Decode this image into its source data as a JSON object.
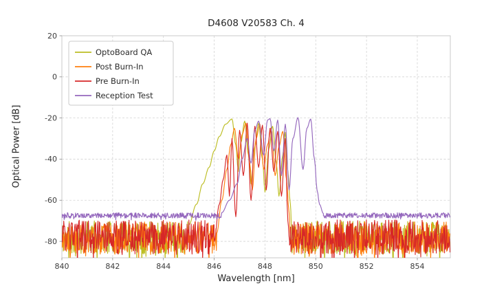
{
  "chart_data": {
    "type": "line",
    "title": "D4608 V20583 Ch. 4",
    "xlabel": "Wavelength [nm]",
    "ylabel": "Optical Power [dB]",
    "xlim": [
      840,
      855.3
    ],
    "ylim": [
      -88,
      20
    ],
    "xticks": [
      840,
      842,
      844,
      846,
      848,
      850,
      852,
      854
    ],
    "yticks": [
      20,
      0,
      -20,
      -40,
      -60,
      -80
    ],
    "grid": true,
    "legend_position": "upper left",
    "series": [
      {
        "name": "OptoBoard QA",
        "color": "#bcbd22",
        "noise": {
          "mean": -78,
          "amp": 8,
          "seed": 11
        },
        "noise_ranges": [
          [
            840,
            845.0
          ],
          [
            849.05,
            855.3
          ]
        ],
        "feature": [
          [
            845.0,
            -72
          ],
          [
            845.3,
            -62
          ],
          [
            845.55,
            -52
          ],
          [
            845.8,
            -44
          ],
          [
            846.0,
            -36
          ],
          [
            846.2,
            -29
          ],
          [
            846.45,
            -23
          ],
          [
            846.7,
            -20.5
          ],
          [
            846.85,
            -33
          ],
          [
            846.95,
            -46
          ],
          [
            847.05,
            -32
          ],
          [
            847.2,
            -21.5
          ],
          [
            847.35,
            -38
          ],
          [
            847.45,
            -52
          ],
          [
            847.6,
            -34
          ],
          [
            847.75,
            -22.5
          ],
          [
            847.9,
            -40
          ],
          [
            848.0,
            -56
          ],
          [
            848.15,
            -35
          ],
          [
            848.3,
            -24
          ],
          [
            848.45,
            -42
          ],
          [
            848.55,
            -58
          ],
          [
            848.7,
            -38
          ],
          [
            848.8,
            -27
          ],
          [
            848.9,
            -46
          ],
          [
            849.0,
            -62
          ],
          [
            849.05,
            -74
          ]
        ]
      },
      {
        "name": "Post Burn-In",
        "color": "#ff7f0e",
        "noise": {
          "mean": -78.5,
          "amp": 8,
          "seed": 22
        },
        "noise_ranges": [
          [
            840,
            846.1
          ],
          [
            849.0,
            855.3
          ]
        ],
        "feature": [
          [
            846.1,
            -76
          ],
          [
            846.3,
            -60
          ],
          [
            846.5,
            -45
          ],
          [
            846.65,
            -33
          ],
          [
            846.8,
            -25
          ],
          [
            846.95,
            -40
          ],
          [
            847.1,
            -28
          ],
          [
            847.25,
            -22.5
          ],
          [
            847.4,
            -42
          ],
          [
            847.5,
            -55
          ],
          [
            847.65,
            -30
          ],
          [
            847.8,
            -23
          ],
          [
            847.95,
            -45
          ],
          [
            848.1,
            -33
          ],
          [
            848.25,
            -24.5
          ],
          [
            848.4,
            -48
          ],
          [
            848.55,
            -34
          ],
          [
            848.7,
            -26.5
          ],
          [
            848.85,
            -50
          ],
          [
            848.95,
            -66
          ],
          [
            849.0,
            -78
          ]
        ]
      },
      {
        "name": "Pre Burn-In",
        "color": "#d62728",
        "noise": {
          "mean": -78,
          "amp": 8.5,
          "seed": 33
        },
        "noise_ranges": [
          [
            840,
            846.0
          ],
          [
            848.97,
            855.3
          ]
        ],
        "feature": [
          [
            846.0,
            -80
          ],
          [
            846.2,
            -62
          ],
          [
            846.35,
            -50
          ],
          [
            846.5,
            -38
          ],
          [
            846.6,
            -58
          ],
          [
            846.7,
            -30
          ],
          [
            846.85,
            -68
          ],
          [
            847.0,
            -26
          ],
          [
            847.15,
            -48
          ],
          [
            847.3,
            -22.5
          ],
          [
            847.45,
            -60
          ],
          [
            847.6,
            -24
          ],
          [
            847.75,
            -44
          ],
          [
            847.9,
            -23.5
          ],
          [
            848.05,
            -55
          ],
          [
            848.2,
            -25
          ],
          [
            848.35,
            -46
          ],
          [
            848.5,
            -26.5
          ],
          [
            848.65,
            -58
          ],
          [
            848.8,
            -30
          ],
          [
            848.9,
            -70
          ],
          [
            848.97,
            -80
          ]
        ]
      },
      {
        "name": "Reception Test",
        "color": "#9467bd",
        "noise": {
          "mean": -67.4,
          "amp": 1.3,
          "seed": 44
        },
        "noise_ranges": [
          [
            840,
            846.3
          ],
          [
            850.3,
            855.3
          ]
        ],
        "feature": [
          [
            846.3,
            -66
          ],
          [
            846.6,
            -60
          ],
          [
            846.9,
            -52
          ],
          [
            847.1,
            -40
          ],
          [
            847.3,
            -30
          ],
          [
            847.45,
            -42
          ],
          [
            847.6,
            -26
          ],
          [
            847.75,
            -21.5
          ],
          [
            847.95,
            -38
          ],
          [
            848.1,
            -21
          ],
          [
            848.2,
            -20.3
          ],
          [
            848.35,
            -36
          ],
          [
            848.5,
            -21
          ],
          [
            848.65,
            -48
          ],
          [
            848.8,
            -23
          ],
          [
            848.95,
            -55
          ],
          [
            849.1,
            -30
          ],
          [
            849.3,
            -19.8
          ],
          [
            849.5,
            -45
          ],
          [
            849.65,
            -25
          ],
          [
            849.8,
            -20.5
          ],
          [
            849.95,
            -40
          ],
          [
            850.05,
            -55
          ],
          [
            850.15,
            -62
          ],
          [
            850.3,
            -66.5
          ]
        ]
      }
    ]
  }
}
